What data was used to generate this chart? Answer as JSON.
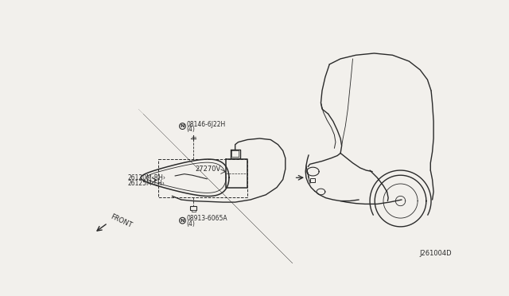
{
  "bg_color": "#f2f0ec",
  "line_color": "#2a2a2a",
  "text_color": "#2a2a2a",
  "diagram_code": "J261004D",
  "part_labels": {
    "lamp_rh": "26120M‹RH›",
    "lamp_lh": "26125M‹LH›",
    "bolt_top": "08146-6J22H",
    "bolt_top2": "(4)",
    "module": "27270V",
    "bolt_bottom": "08913-6065A",
    "bolt_bottom2": "(4)"
  }
}
